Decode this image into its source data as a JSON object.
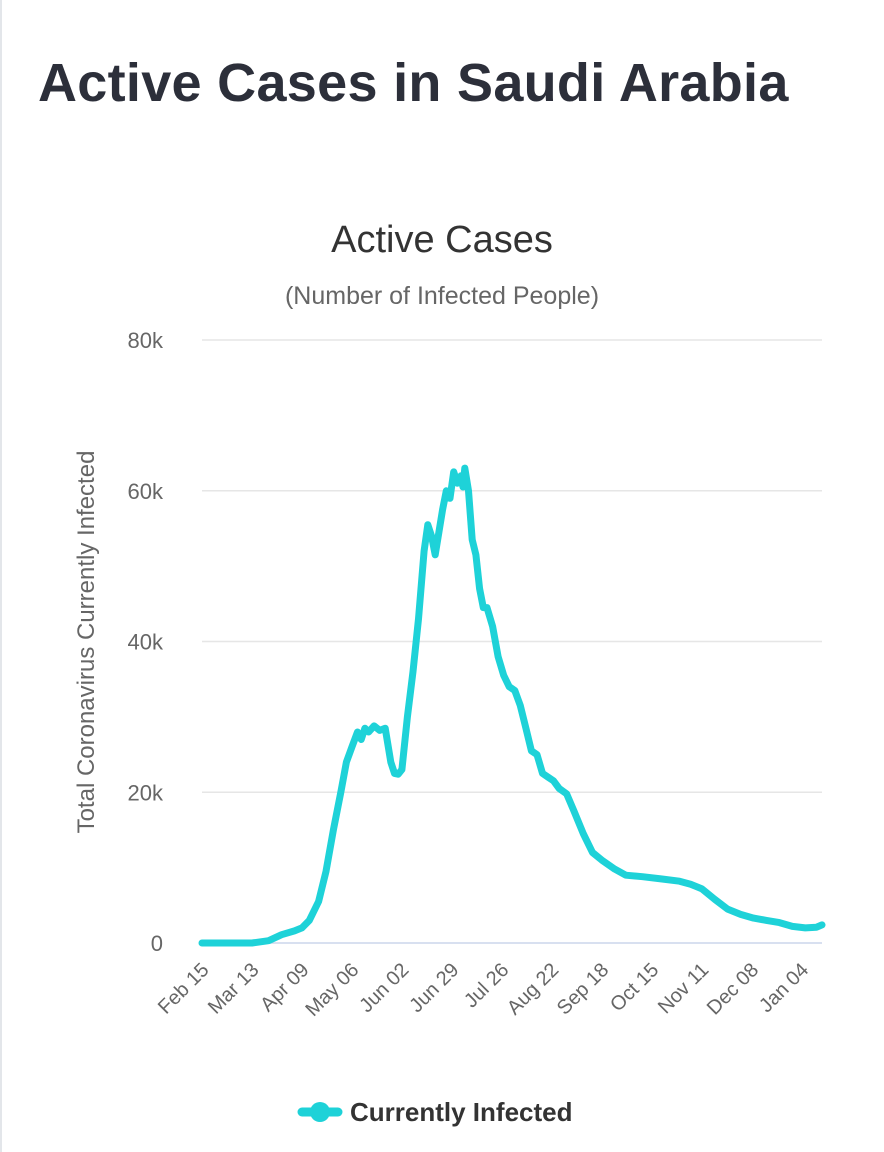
{
  "page": {
    "title": "Active Cases in Saudi Arabia"
  },
  "colors": {
    "series": "#1ed2d8",
    "grid": "#e6e6e6",
    "axis": "#ccd6eb",
    "title": "#2c2f3a"
  },
  "chart_data": {
    "type": "line",
    "title": "Active Cases",
    "subtitle": "(Number of Infected People)",
    "xlabel": "",
    "ylabel": "Total Coronavirus Currently Infected",
    "ylim": [
      0,
      80000
    ],
    "x_range": [
      "Feb 15",
      "Jan 15"
    ],
    "y_ticks": [
      {
        "value": 0,
        "label": "0"
      },
      {
        "value": 20000,
        "label": "20k"
      },
      {
        "value": 40000,
        "label": "40k"
      },
      {
        "value": 60000,
        "label": "60k"
      },
      {
        "value": 80000,
        "label": "80k"
      }
    ],
    "x_ticks": [
      {
        "date": "Feb 15",
        "label": "Feb 15"
      },
      {
        "date": "Mar 13",
        "label": "Mar 13"
      },
      {
        "date": "Apr 09",
        "label": "Apr 09"
      },
      {
        "date": "May 06",
        "label": "May 06"
      },
      {
        "date": "Jun 02",
        "label": "Jun 02"
      },
      {
        "date": "Jun 29",
        "label": "Jun 29"
      },
      {
        "date": "Jul 26",
        "label": "Jul 26"
      },
      {
        "date": "Aug 22",
        "label": "Aug 22"
      },
      {
        "date": "Sep 18",
        "label": "Sep 18"
      },
      {
        "date": "Oct 15",
        "label": "Oct 15"
      },
      {
        "date": "Nov 11",
        "label": "Nov 11"
      },
      {
        "date": "Dec 08",
        "label": "Dec 08"
      },
      {
        "date": "Jan 04",
        "label": "Jan 04"
      }
    ],
    "grid": true,
    "legend": "bottom-center",
    "series": [
      {
        "name": "Currently Infected",
        "color": "#1ed2d8",
        "points": [
          [
            "Feb 15",
            0
          ],
          [
            "Mar 02",
            0
          ],
          [
            "Mar 13",
            5
          ],
          [
            "Mar 22",
            300
          ],
          [
            "Mar 29",
            1100
          ],
          [
            "Apr 05",
            1600
          ],
          [
            "Apr 09",
            2000
          ],
          [
            "Apr 13",
            3000
          ],
          [
            "Apr 18",
            5500
          ],
          [
            "Apr 22",
            9500
          ],
          [
            "Apr 26",
            15000
          ],
          [
            "Apr 30",
            20000
          ],
          [
            "May 03",
            24000
          ],
          [
            "May 06",
            26000
          ],
          [
            "May 09",
            28000
          ],
          [
            "May 11",
            27000
          ],
          [
            "May 13",
            28500
          ],
          [
            "May 15",
            28000
          ],
          [
            "May 18",
            28800
          ],
          [
            "May 21",
            28200
          ],
          [
            "May 24",
            28500
          ],
          [
            "May 27",
            24000
          ],
          [
            "May 29",
            22500
          ],
          [
            "May 31",
            22400
          ],
          [
            "Jun 02",
            23000
          ],
          [
            "Jun 05",
            30000
          ],
          [
            "Jun 08",
            36000
          ],
          [
            "Jun 11",
            43000
          ],
          [
            "Jun 14",
            52000
          ],
          [
            "Jun 16",
            55500
          ],
          [
            "Jun 18",
            54000
          ],
          [
            "Jun 20",
            51500
          ],
          [
            "Jun 22",
            54500
          ],
          [
            "Jun 24",
            57500
          ],
          [
            "Jun 26",
            60000
          ],
          [
            "Jun 28",
            59000
          ],
          [
            "Jun 30",
            62500
          ],
          [
            "Jul 02",
            61000
          ],
          [
            "Jul 04",
            62000
          ],
          [
            "Jul 05",
            60500
          ],
          [
            "Jul 06",
            63000
          ],
          [
            "Jul 08",
            60000
          ],
          [
            "Jul 10",
            53500
          ],
          [
            "Jul 12",
            51500
          ],
          [
            "Jul 14",
            47000
          ],
          [
            "Jul 16",
            44500
          ],
          [
            "Jul 18",
            44500
          ],
          [
            "Jul 21",
            42000
          ],
          [
            "Jul 24",
            38000
          ],
          [
            "Jul 27",
            35500
          ],
          [
            "Jul 30",
            34000
          ],
          [
            "Aug 02",
            33500
          ],
          [
            "Aug 05",
            31500
          ],
          [
            "Aug 08",
            28500
          ],
          [
            "Aug 11",
            25500
          ],
          [
            "Aug 14",
            25000
          ],
          [
            "Aug 17",
            22500
          ],
          [
            "Aug 20",
            22000
          ],
          [
            "Aug 23",
            21500
          ],
          [
            "Aug 26",
            20500
          ],
          [
            "Aug 30",
            19800
          ],
          [
            "Sep 03",
            17500
          ],
          [
            "Sep 08",
            14500
          ],
          [
            "Sep 13",
            12000
          ],
          [
            "Sep 18",
            11000
          ],
          [
            "Sep 25",
            9800
          ],
          [
            "Oct 01",
            9000
          ],
          [
            "Oct 10",
            8800
          ],
          [
            "Oct 20",
            8500
          ],
          [
            "Oct 30",
            8200
          ],
          [
            "Nov 05",
            7800
          ],
          [
            "Nov 11",
            7200
          ],
          [
            "Nov 18",
            5800
          ],
          [
            "Nov 25",
            4500
          ],
          [
            "Dec 02",
            3800
          ],
          [
            "Dec 09",
            3300
          ],
          [
            "Dec 16",
            3000
          ],
          [
            "Dec 23",
            2700
          ],
          [
            "Dec 30",
            2200
          ],
          [
            "Jan 06",
            2000
          ],
          [
            "Jan 12",
            2100
          ],
          [
            "Jan 15",
            2400
          ]
        ]
      }
    ]
  }
}
